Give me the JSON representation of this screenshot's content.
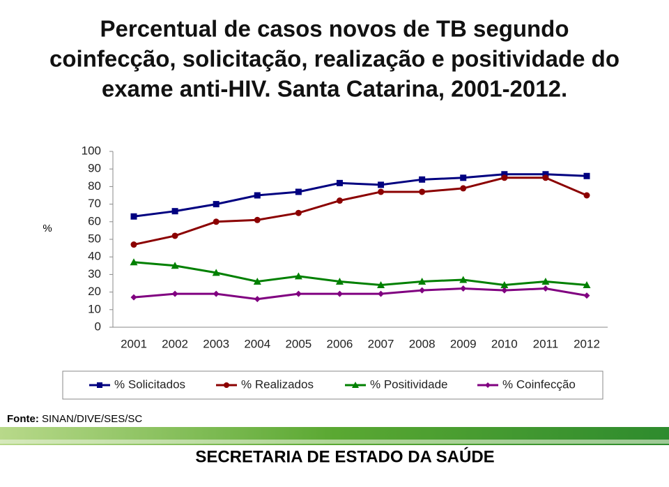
{
  "chart_data": {
    "type": "line",
    "title": [
      "Percentual de casos novos de TB segundo",
      "coinfecção, solicitação, realização e positividade do",
      "exame anti-HIV. Santa Catarina, 2001-2012."
    ],
    "ylabel": "%",
    "categories": [
      "2001",
      "2002",
      "2003",
      "2004",
      "2005",
      "2006",
      "2007",
      "2008",
      "2009",
      "2010",
      "2011",
      "2012"
    ],
    "ylim": [
      0,
      100
    ],
    "yticks": [
      0,
      10,
      20,
      30,
      40,
      50,
      60,
      70,
      80,
      90,
      100
    ],
    "grid": false,
    "series": [
      {
        "name": "% Solicitados",
        "color": "#000080",
        "marker": "square",
        "values": [
          63,
          66,
          70,
          75,
          77,
          82,
          81,
          84,
          85,
          87,
          87,
          86
        ]
      },
      {
        "name": "% Realizados",
        "color": "#8b0000",
        "marker": "circle",
        "values": [
          47,
          52,
          60,
          61,
          65,
          72,
          77,
          77,
          79,
          85,
          85,
          75
        ]
      },
      {
        "name": "% Positividade",
        "color": "#008000",
        "marker": "triangle",
        "values": [
          37,
          35,
          31,
          26,
          29,
          26,
          24,
          26,
          27,
          24,
          26,
          24
        ]
      },
      {
        "name": "% Coinfecção",
        "color": "#800080",
        "marker": "diamond",
        "values": [
          17,
          19,
          19,
          16,
          19,
          19,
          19,
          21,
          22,
          21,
          22,
          18
        ]
      }
    ]
  },
  "source": {
    "label": "Fonte:",
    "text": "SINAN/DIVE/SES/SC"
  },
  "footer": "SECRETARIA DE ESTADO DA SAÚDE"
}
